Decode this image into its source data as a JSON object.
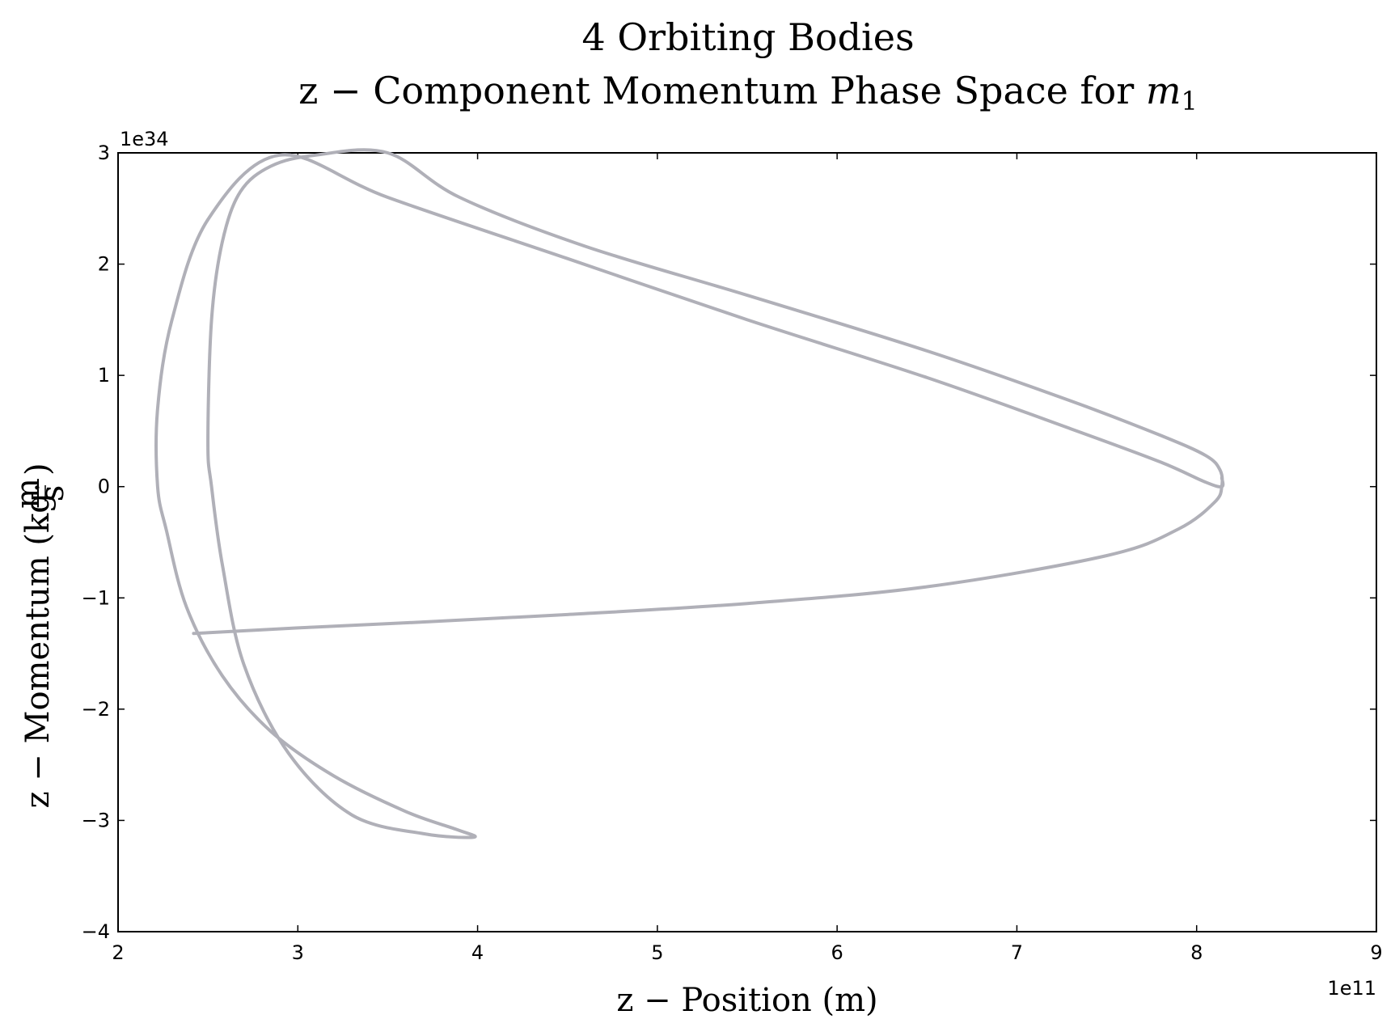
{
  "chart_data": {
    "type": "line",
    "title_line1": "4 Orbiting Bodies",
    "title_line2_prefix": "z − Component Momentum Phase Space for ",
    "title_line2_var": "m",
    "title_line2_sub": "1",
    "xlabel": "z − Position (m)",
    "ylabel_prefix": "z − Momentum (kg·",
    "ylabel_frac_num": "m",
    "ylabel_frac_den": "s",
    "ylabel_suffix": ")",
    "x_multiplier": "1e11",
    "y_multiplier": "1e34",
    "xlim": [
      2,
      9
    ],
    "ylim": [
      -4,
      3
    ],
    "x_ticks": [
      2,
      3,
      4,
      5,
      6,
      7,
      8,
      9
    ],
    "y_ticks": [
      -4,
      -3,
      -2,
      -1,
      0,
      1,
      2,
      3
    ],
    "x_tick_labels": [
      "2",
      "3",
      "4",
      "5",
      "6",
      "7",
      "8",
      "9"
    ],
    "y_tick_labels": [
      "−4",
      "−3",
      "−2",
      "−1",
      "0",
      "1",
      "2",
      "3"
    ],
    "grid": false,
    "line_color": "#b0b0b8",
    "series": [
      {
        "x": [
          2.42,
          3.0,
          3.65,
          4.5,
          5.5,
          6.5,
          7.5,
          7.9,
          8.1,
          8.14,
          8.13,
          8.05,
          7.8,
          7.3,
          6.5,
          5.5,
          4.6,
          3.9,
          3.5,
          3.1,
          2.85,
          2.68,
          2.58,
          2.52,
          2.5,
          2.52,
          2.58,
          2.7,
          2.95,
          3.3,
          3.7,
          3.98,
          3.88,
          3.6,
          3.2,
          2.85,
          2.58,
          2.38,
          2.27,
          2.22,
          2.22,
          2.3,
          2.5,
          2.9,
          3.5,
          4.5,
          5.5,
          6.5,
          7.3,
          7.8,
          8.05,
          8.14,
          8.14
        ],
        "y": [
          -1.32,
          -1.27,
          -1.22,
          -1.15,
          -1.05,
          -0.9,
          -0.62,
          -0.38,
          -0.14,
          0.0,
          0.15,
          0.28,
          0.46,
          0.77,
          1.22,
          1.72,
          2.16,
          2.6,
          3.0,
          2.98,
          2.88,
          2.65,
          2.2,
          1.5,
          0.4,
          0.0,
          -0.7,
          -1.6,
          -2.4,
          -2.95,
          -3.12,
          -3.15,
          -3.08,
          -2.92,
          -2.6,
          -2.2,
          -1.7,
          -1.08,
          -0.4,
          0.0,
          0.7,
          1.5,
          2.4,
          2.98,
          2.6,
          2.05,
          1.5,
          0.98,
          0.52,
          0.22,
          0.04,
          0.0,
          0.08
        ]
      }
    ]
  }
}
